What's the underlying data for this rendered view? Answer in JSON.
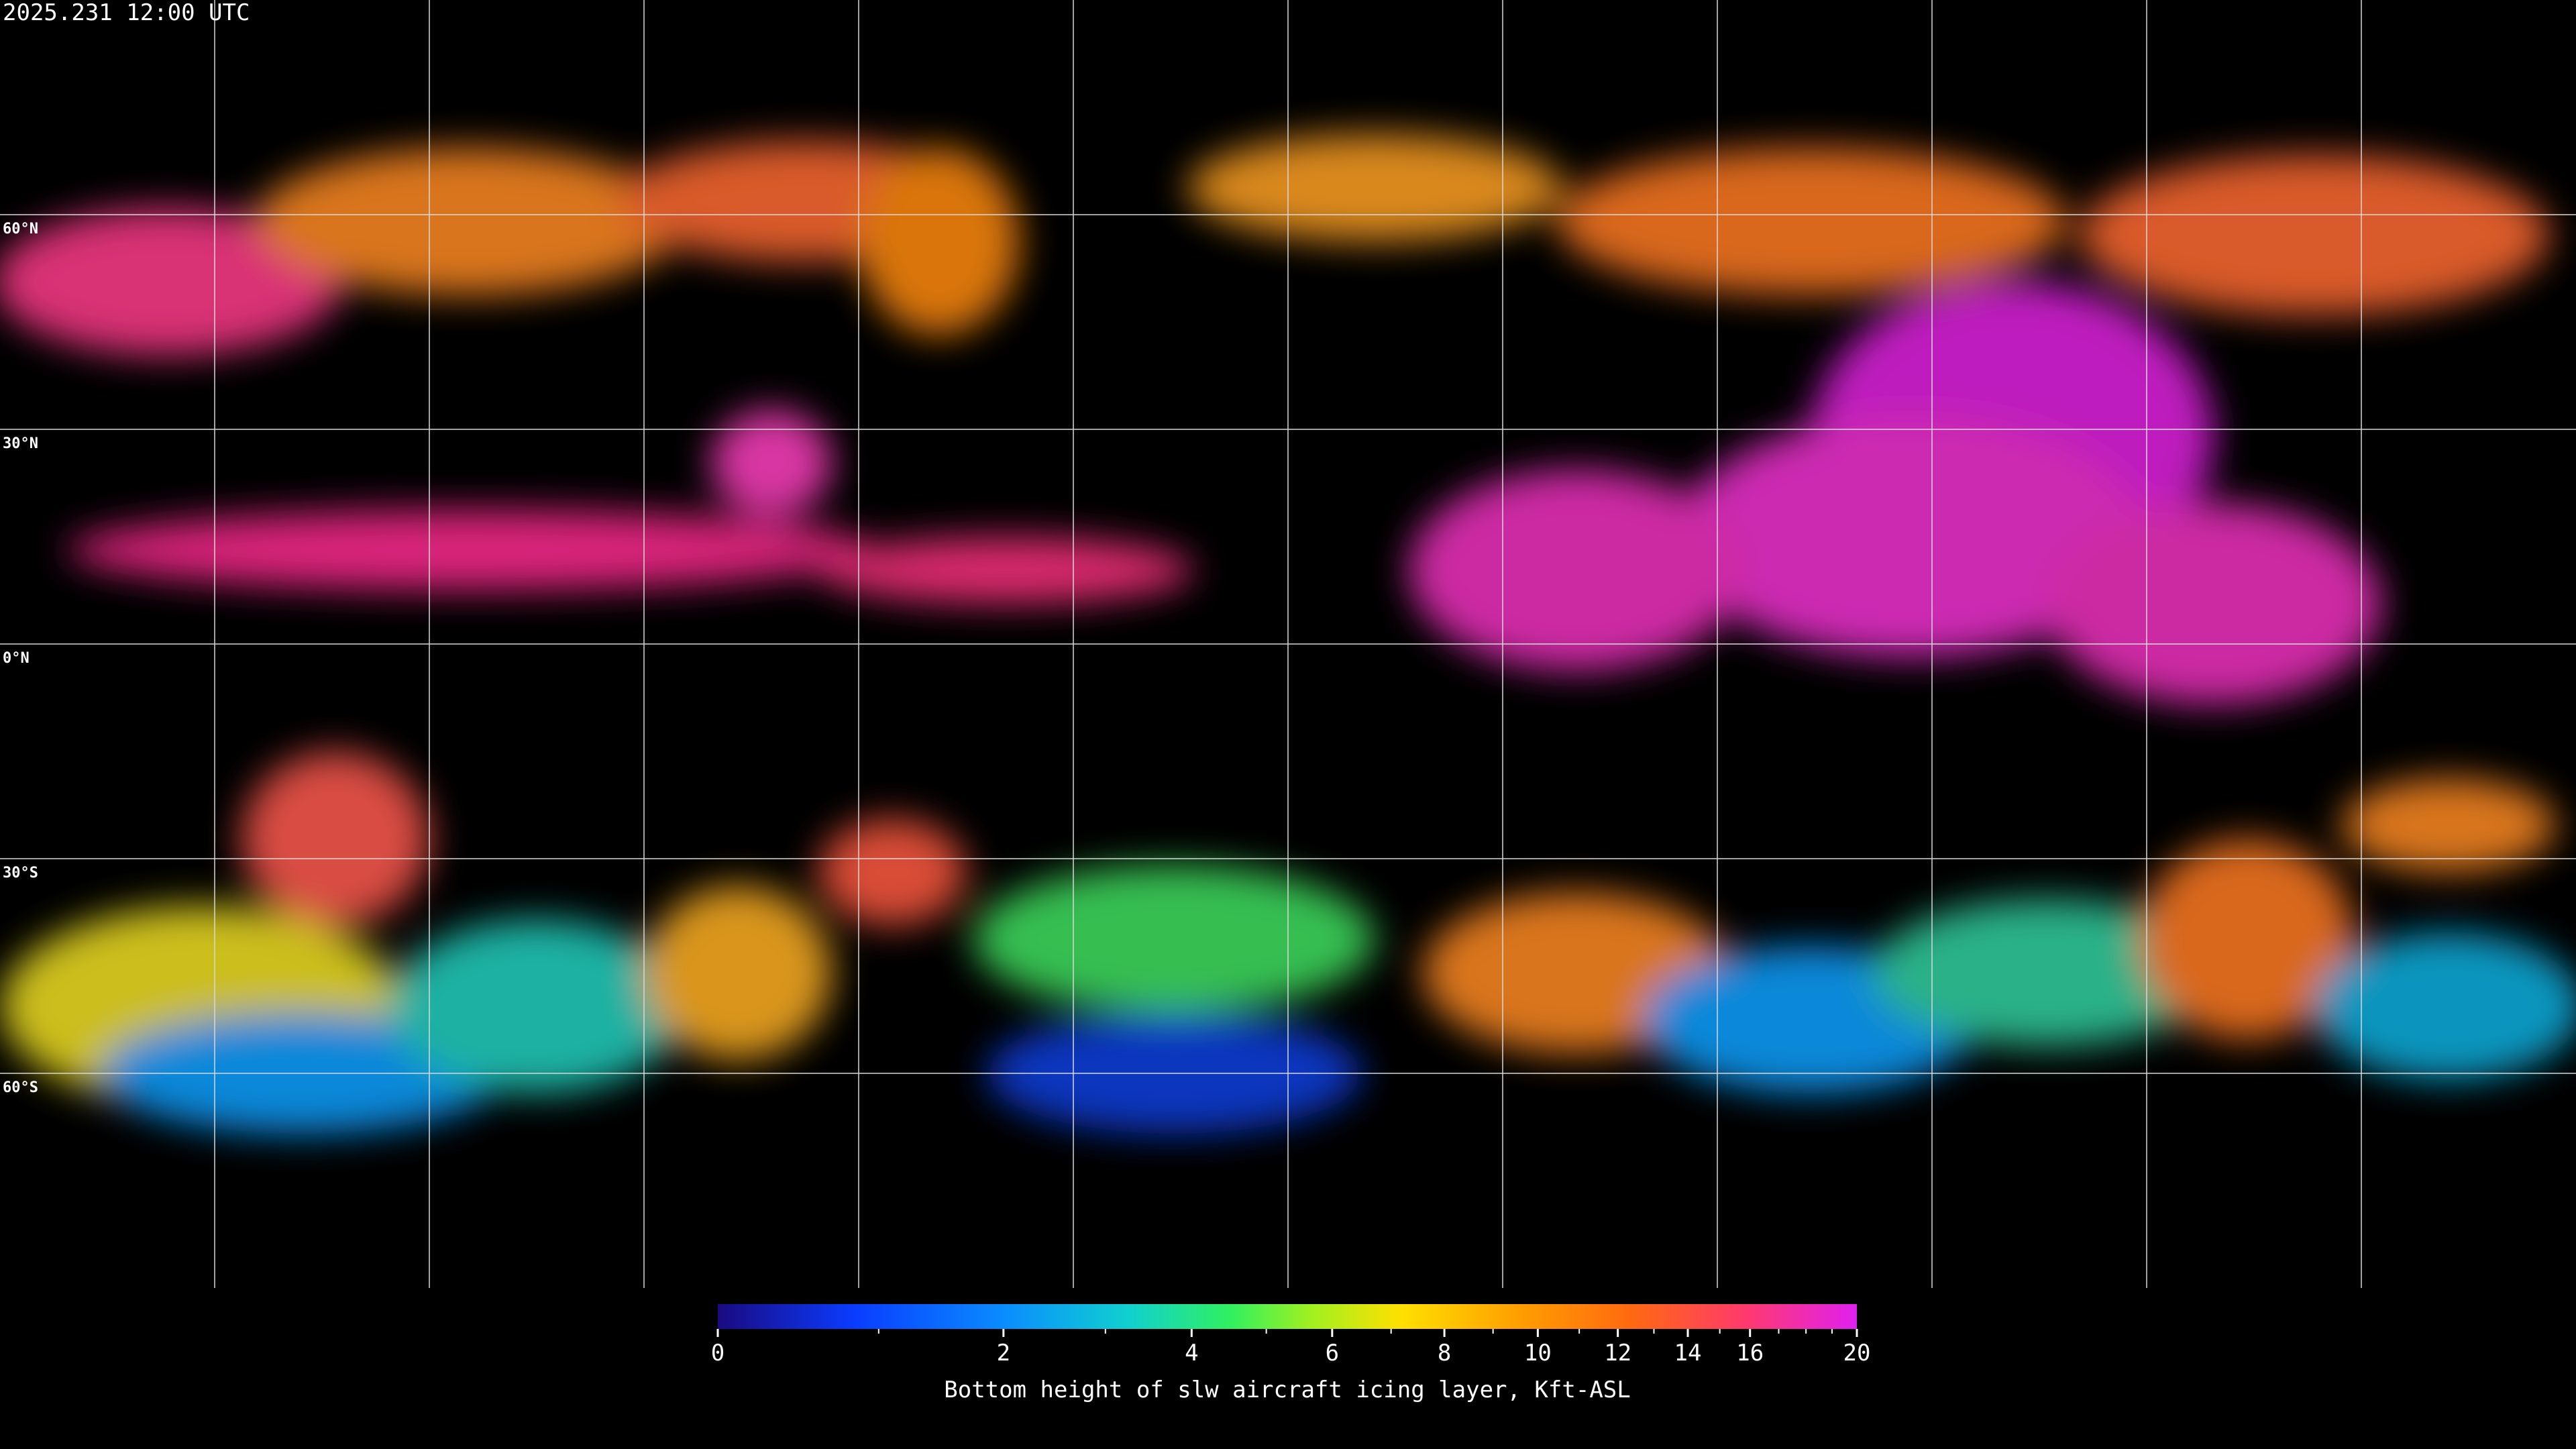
{
  "map": {
    "timestamp": "2025.231 12:00 UTC",
    "xlim": [
      -180,
      180
    ],
    "ylim": [
      -90,
      90
    ],
    "longitude_lines": [
      -150,
      -120,
      -90,
      -60,
      -30,
      0,
      30,
      60,
      90,
      120,
      150
    ],
    "latitude_lines": [
      {
        "value": 60,
        "label": "60°N"
      },
      {
        "value": 30,
        "label": "30°N"
      },
      {
        "value": 0,
        "label": "0°N"
      },
      {
        "value": -30,
        "label": "30°S"
      },
      {
        "value": -60,
        "label": "60°S"
      }
    ]
  },
  "colorbar": {
    "label": "Bottom height of slw aircraft icing layer, Kft-ASL",
    "lim": [
      0,
      20
    ],
    "ticks": [
      0,
      2,
      4,
      6,
      8,
      10,
      12,
      14,
      16,
      20
    ],
    "minor_ticks": [
      1,
      3,
      5,
      7,
      9,
      11,
      13,
      15,
      17,
      18,
      19
    ]
  }
}
